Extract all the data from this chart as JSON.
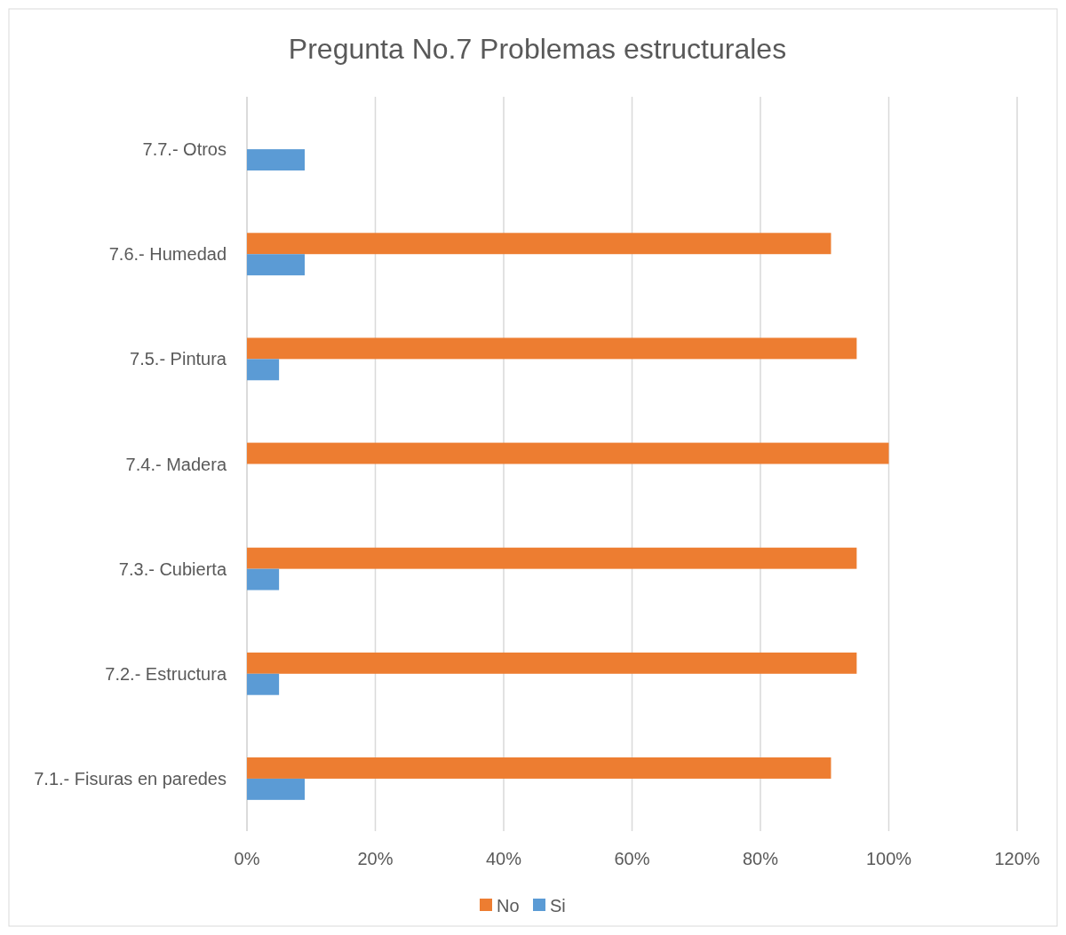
{
  "chart_data": {
    "type": "bar",
    "orientation": "horizontal",
    "title": "Pregunta No.7 Problemas estructurales",
    "categories": [
      "7.7.- Otros",
      "7.6.- Humedad",
      "7.5.- Pintura",
      "7.4.- Madera",
      "7.3.- Cubierta",
      "7.2.- Estructura",
      "7.1.- Fisuras en paredes"
    ],
    "series": [
      {
        "name": "No",
        "color": "#ed7d31",
        "values": [
          0,
          91,
          95,
          100,
          95,
          95,
          91
        ]
      },
      {
        "name": "Si",
        "color": "#5b9bd5",
        "values": [
          9,
          9,
          5,
          0,
          5,
          5,
          9
        ]
      }
    ],
    "xlim": [
      0,
      120
    ],
    "xticks": [
      {
        "value": 0,
        "label": "0%"
      },
      {
        "value": 20,
        "label": "20%"
      },
      {
        "value": 40,
        "label": "40%"
      },
      {
        "value": 60,
        "label": "60%"
      },
      {
        "value": 80,
        "label": "80%"
      },
      {
        "value": 100,
        "label": "100%"
      },
      {
        "value": 120,
        "label": "120%"
      }
    ],
    "grid": "x",
    "legend": "bottom"
  }
}
